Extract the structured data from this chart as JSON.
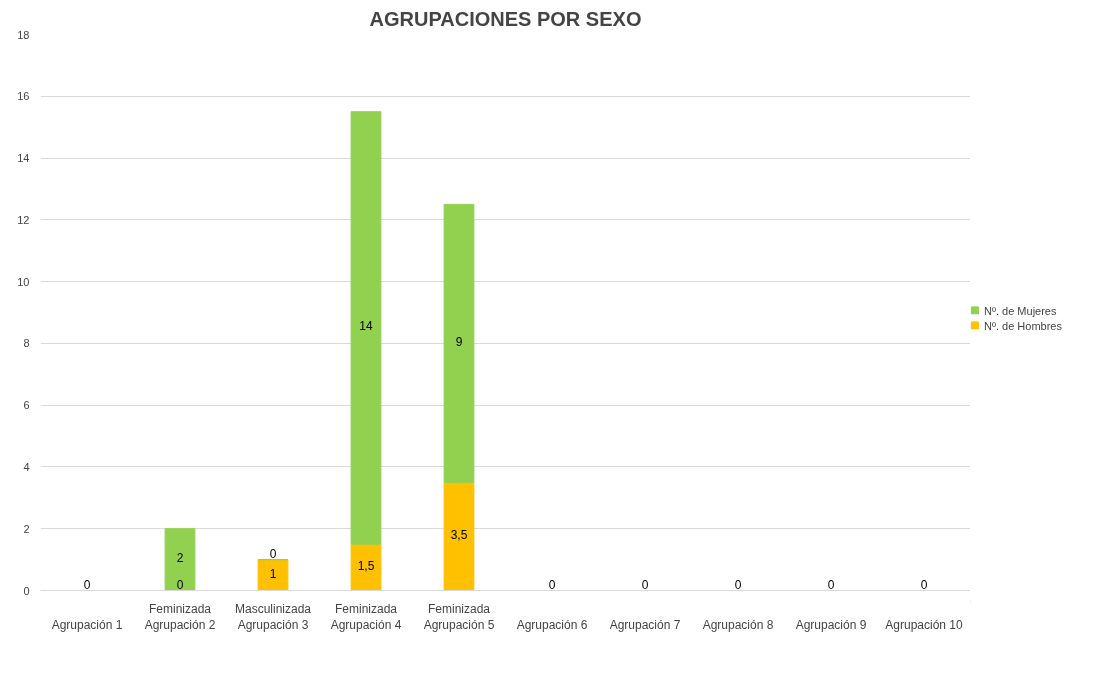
{
  "chart_data": {
    "type": "bar",
    "title": "AGRUPACIONES POR SEXO",
    "stacked": true,
    "categories": [
      "\nAgrupación 1",
      "Feminizada\nAgrupación 2",
      "Masculinizada\nAgrupación 3",
      "Feminizada\nAgrupación 4",
      "Feminizada\nAgrupación 5",
      "\nAgrupación 6",
      "\nAgrupación 7",
      "\nAgrupación 8",
      "\nAgrupación 9",
      "\nAgrupación 10"
    ],
    "series": [
      {
        "name": "Nº. de Hombres",
        "color": "#ffc000",
        "values": [
          0,
          0,
          1,
          1.5,
          3.5,
          0,
          0,
          0,
          0,
          0
        ],
        "value_labels": [
          "0",
          "0",
          "1",
          "1,5",
          "3,5",
          "0",
          "0",
          "0",
          "0",
          "0"
        ]
      },
      {
        "name": "Nº. de Mujeres",
        "color": "#92d050",
        "values": [
          0,
          2,
          0,
          14,
          9,
          0,
          0,
          0,
          0,
          0
        ],
        "value_labels": [
          null,
          "2",
          "0",
          "14",
          "9",
          null,
          null,
          null,
          null,
          null
        ]
      }
    ],
    "ylim": [
      0,
      18
    ],
    "yticks": [
      0,
      2,
      4,
      6,
      8,
      10,
      12,
      14,
      16,
      18
    ],
    "grid": "y",
    "legend": "right"
  }
}
